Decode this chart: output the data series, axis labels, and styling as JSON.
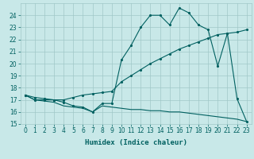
{
  "xlabel": "Humidex (Indice chaleur)",
  "bg_color": "#c8e8e8",
  "line_color": "#006060",
  "grid_color": "#a0c8c8",
  "xlim": [
    -0.5,
    23.5
  ],
  "ylim": [
    15,
    25
  ],
  "yticks": [
    15,
    16,
    17,
    18,
    19,
    20,
    21,
    22,
    23,
    24
  ],
  "xticks": [
    0,
    1,
    2,
    3,
    4,
    5,
    6,
    7,
    8,
    9,
    10,
    11,
    12,
    13,
    14,
    15,
    16,
    17,
    18,
    19,
    20,
    21,
    22,
    23
  ],
  "curve1_x": [
    0,
    1,
    2,
    3,
    4,
    5,
    6,
    7,
    8,
    9,
    10,
    11,
    12,
    13,
    14,
    15,
    16,
    17,
    18,
    19,
    20,
    21,
    22,
    23
  ],
  "curve1_y": [
    17.4,
    17.0,
    17.0,
    17.0,
    16.8,
    16.5,
    16.4,
    16.0,
    16.7,
    16.7,
    20.3,
    21.5,
    23.0,
    24.0,
    24.0,
    23.2,
    24.6,
    24.2,
    23.2,
    22.8,
    19.8,
    22.5,
    17.1,
    15.2
  ],
  "curve2_x": [
    0,
    1,
    2,
    3,
    4,
    5,
    6,
    7,
    8,
    9,
    10,
    11,
    12,
    13,
    14,
    15,
    16,
    17,
    18,
    19,
    20,
    21,
    22,
    23
  ],
  "curve2_y": [
    17.4,
    17.2,
    17.1,
    17.0,
    17.0,
    17.2,
    17.4,
    17.5,
    17.6,
    17.7,
    18.5,
    19.0,
    19.5,
    20.0,
    20.4,
    20.8,
    21.2,
    21.5,
    21.8,
    22.1,
    22.4,
    22.5,
    22.6,
    22.8
  ],
  "curve3_x": [
    0,
    1,
    2,
    3,
    4,
    5,
    6,
    7,
    8,
    9,
    10,
    11,
    12,
    13,
    14,
    15,
    16,
    17,
    18,
    19,
    20,
    21,
    22,
    23
  ],
  "curve3_y": [
    17.4,
    17.0,
    16.9,
    16.8,
    16.5,
    16.4,
    16.3,
    16.0,
    16.5,
    16.4,
    16.3,
    16.2,
    16.2,
    16.1,
    16.1,
    16.0,
    16.0,
    15.9,
    15.8,
    15.7,
    15.6,
    15.5,
    15.4,
    15.2
  ]
}
